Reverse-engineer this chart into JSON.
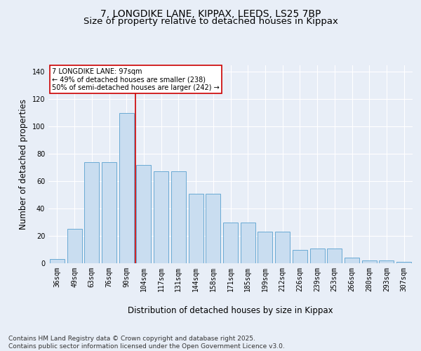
{
  "title_line1": "7, LONGDIKE LANE, KIPPAX, LEEDS, LS25 7BP",
  "title_line2": "Size of property relative to detached houses in Kippax",
  "xlabel": "Distribution of detached houses by size in Kippax",
  "ylabel": "Number of detached properties",
  "categories": [
    "36sqm",
    "49sqm",
    "63sqm",
    "76sqm",
    "90sqm",
    "104sqm",
    "117sqm",
    "131sqm",
    "144sqm",
    "158sqm",
    "171sqm",
    "185sqm",
    "199sqm",
    "212sqm",
    "226sqm",
    "239sqm",
    "253sqm",
    "266sqm",
    "280sqm",
    "293sqm",
    "307sqm"
  ],
  "values": [
    3,
    25,
    74,
    74,
    110,
    72,
    67,
    67,
    51,
    51,
    30,
    30,
    23,
    23,
    10,
    11,
    11,
    4,
    2,
    2,
    1
  ],
  "bar_color": "#c9ddf0",
  "bar_edgecolor": "#6aaad4",
  "vline_x": 4.5,
  "vline_color": "#cc0000",
  "annotation_text": "7 LONGDIKE LANE: 97sqm\n← 49% of detached houses are smaller (238)\n50% of semi-detached houses are larger (242) →",
  "annotation_box_color": "#cc0000",
  "ylim": [
    0,
    145
  ],
  "yticks": [
    0,
    20,
    40,
    60,
    80,
    100,
    120,
    140
  ],
  "footer": "Contains HM Land Registry data © Crown copyright and database right 2025.\nContains public sector information licensed under the Open Government Licence v3.0.",
  "background_color": "#e8eef7",
  "plot_background": "#e8eef7",
  "title_fontsize": 10,
  "subtitle_fontsize": 9.5,
  "axis_label_fontsize": 8.5,
  "tick_fontsize": 7,
  "footer_fontsize": 6.5
}
